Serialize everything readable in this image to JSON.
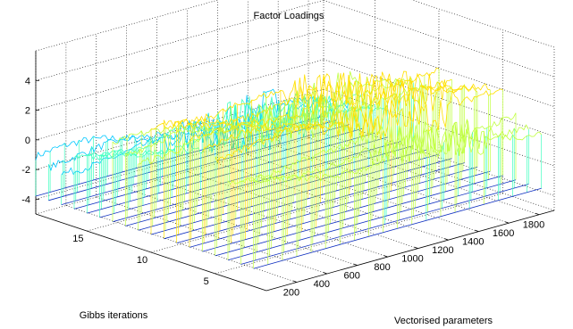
{
  "chart_data": {
    "type": "waterfall3d",
    "title": "Factor Loadings",
    "xlabel": "Vectorised parameters",
    "ylabel": "Gibbs iterations",
    "zlabel": "",
    "x_ticks": [
      "200",
      "400",
      "600",
      "800",
      "1000",
      "1200",
      "1400",
      "1600",
      "1800"
    ],
    "y_ticks": [
      "5",
      "10",
      "15"
    ],
    "z_ticks": [
      "-4",
      "-2",
      "0",
      "2",
      "4"
    ],
    "xlim": [
      0,
      1900
    ],
    "ylim": [
      1,
      19
    ],
    "zlim": [
      -5,
      6
    ],
    "grid": "on",
    "colormap": [
      "#0000c0",
      "#0055ff",
      "#00c8ff",
      "#40ffc0",
      "#c0ff40",
      "#ffe000",
      "#ff8000",
      "#e00000"
    ],
    "series": [
      {
        "iteration": 18,
        "value_range": [
          -1.2,
          -2.8
        ]
      },
      {
        "iteration": 15,
        "value_range": [
          -0.2,
          -1.4
        ]
      },
      {
        "iteration": 12,
        "value_range": [
          1.2,
          0.2
        ]
      },
      {
        "iteration": 9,
        "value_range": [
          3.8,
          1.8
        ]
      },
      {
        "iteration": 6,
        "value_range": [
          3.2,
          1.6
        ]
      },
      {
        "iteration": 3,
        "value_range": [
          1.8,
          0.4
        ]
      }
    ]
  }
}
